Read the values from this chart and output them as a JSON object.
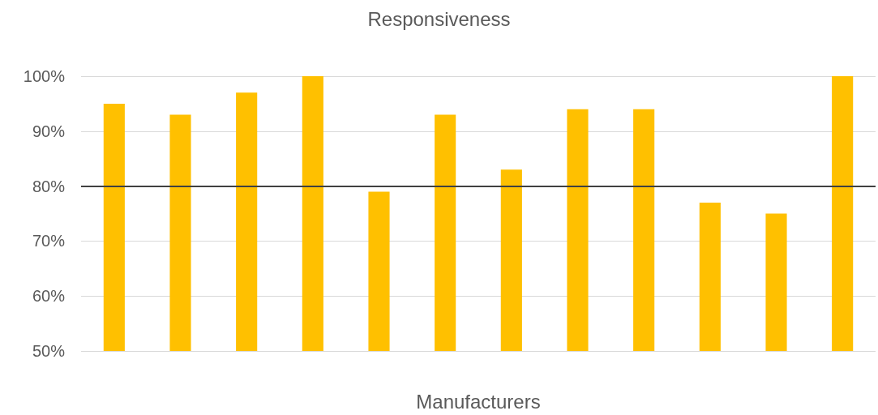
{
  "chart_data": {
    "type": "bar",
    "title": "Responsiveness",
    "xlabel": "Manufacturers",
    "categories": [
      null,
      null,
      null,
      null,
      null,
      null,
      null,
      null,
      null,
      null,
      null,
      null
    ],
    "values": [
      95,
      93,
      97,
      100,
      79,
      93,
      83,
      94,
      94,
      77,
      75,
      100
    ],
    "color": "#ffc000",
    "ylim": [
      50,
      100
    ],
    "yticks": [
      {
        "value": 50,
        "label": "50%"
      },
      {
        "value": 60,
        "label": "60%"
      },
      {
        "value": 70,
        "label": "70%"
      },
      {
        "value": 80,
        "label": "80%"
      },
      {
        "value": 90,
        "label": "90%"
      },
      {
        "value": 100,
        "label": "100%"
      }
    ],
    "grid": "y",
    "ref_lines": [
      {
        "axis": "y",
        "value": 80,
        "color": "#404040"
      }
    ]
  }
}
